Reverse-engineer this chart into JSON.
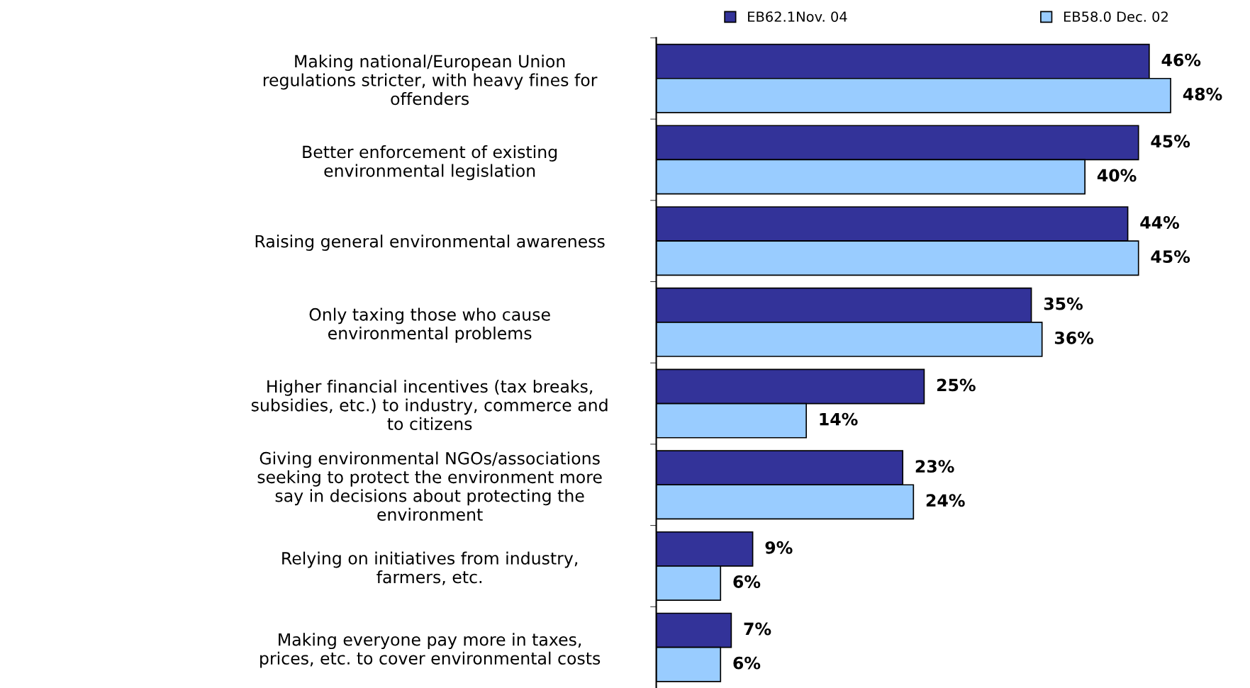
{
  "chart_data": {
    "type": "bar",
    "orientation": "horizontal",
    "legend": "top",
    "data_labels": true,
    "categories": [
      "Making national/European Union\nregulations stricter, with heavy fines for\noffenders",
      "Better enforcement of existing\nenvironmental legislation",
      "Raising general environmental awareness",
      "Only taxing those who cause\nenvironmental problems",
      "Higher financial incentives (tax breaks,\nsubsidies, etc.) to industry, commerce and\nto citizens",
      "Giving environmental NGOs/associations\nseeking to protect the environment more\nsay in decisions about protecting the\nenvironment",
      "Relying on initiatives from industry,\nfarmers, etc.",
      "Making everyone pay more in taxes,\nprices, etc. to cover environmental costs"
    ],
    "series": [
      {
        "name": "EB62.1Nov. 04",
        "color": "#333399",
        "values": [
          46,
          45,
          44,
          35,
          25,
          23,
          9,
          7
        ],
        "value_labels": [
          "46%",
          "45%",
          "44%",
          "35%",
          "25%",
          "23%",
          "9%",
          "7%"
        ]
      },
      {
        "name": "EB58.0 Dec. 02",
        "color": "#99ccff",
        "values": [
          48,
          40,
          45,
          36,
          14,
          24,
          6,
          6
        ],
        "value_labels": [
          "48%",
          "40%",
          "45%",
          "36%",
          "14%",
          "24%",
          "6%",
          "6%"
        ]
      }
    ]
  }
}
